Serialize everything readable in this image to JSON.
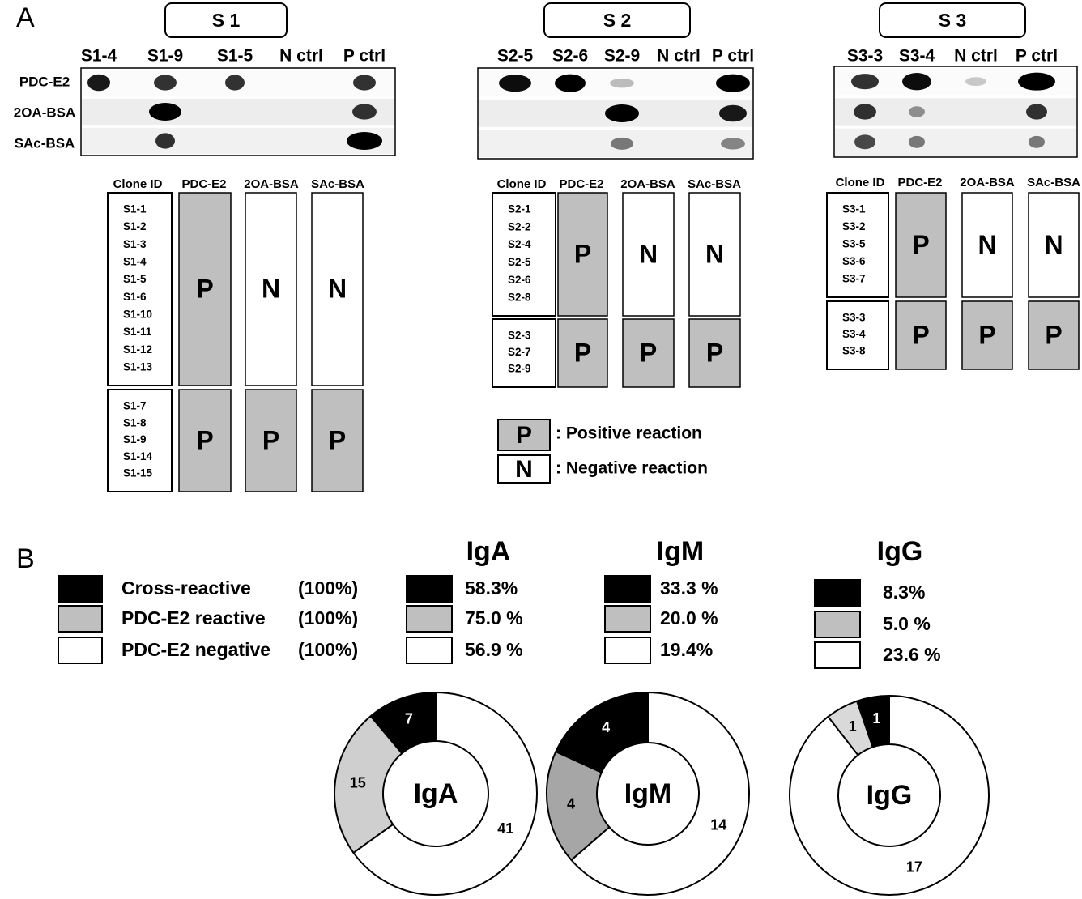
{
  "panel_a": {
    "label": "A",
    "sections": [
      {
        "title": "S 1",
        "lanes": [
          "S1-4",
          "S1-9",
          "S1-5",
          "N ctrl",
          "P ctrl"
        ],
        "rows": [
          "PDC-E2",
          "2OA-BSA",
          "SAc-BSA"
        ],
        "table": {
          "headers": [
            "Clone ID",
            "PDC-E2",
            "2OA-BSA",
            "SAc-BSA"
          ],
          "groups": [
            {
              "clones": [
                "S1-1",
                "S1-2",
                "S1-3",
                "S1-4",
                "S1-5",
                "S1-6",
                "S1-10",
                "S1-11",
                "S1-12",
                "S1-13"
              ],
              "results": [
                "P",
                "N",
                "N"
              ]
            },
            {
              "clones": [
                "S1-7",
                "S1-8",
                "S1-9",
                "S1-14",
                "S1-15"
              ],
              "results": [
                "P",
                "P",
                "P"
              ]
            }
          ]
        }
      },
      {
        "title": "S 2",
        "lanes": [
          "S2-5",
          "S2-6",
          "S2-9",
          "N ctrl",
          "P ctrl"
        ],
        "table": {
          "headers": [
            "Clone ID",
            "PDC-E2",
            "2OA-BSA",
            "SAc-BSA"
          ],
          "groups": [
            {
              "clones": [
                "S2-1",
                "S2-2",
                "S2-4",
                "S2-5",
                "S2-6",
                "S2-8"
              ],
              "results": [
                "P",
                "N",
                "N"
              ]
            },
            {
              "clones": [
                "S2-3",
                "S2-7",
                "S2-9"
              ],
              "results": [
                "P",
                "P",
                "P"
              ]
            }
          ]
        }
      },
      {
        "title": "S 3",
        "lanes": [
          "S3-3",
          "S3-4",
          "N ctrl",
          "P ctrl"
        ],
        "table": {
          "headers": [
            "Clone ID",
            "PDC-E2",
            "2OA-BSA",
            "SAc-BSA"
          ],
          "groups": [
            {
              "clones": [
                "S3-1",
                "S3-2",
                "S3-5",
                "S3-6",
                "S3-7"
              ],
              "results": [
                "P",
                "N",
                "N"
              ]
            },
            {
              "clones": [
                "S3-3",
                "S3-4",
                "S3-8"
              ],
              "results": [
                "P",
                "P",
                "P"
              ]
            }
          ]
        }
      }
    ],
    "legend": [
      {
        "symbol": "P",
        "text": ": Positive reaction"
      },
      {
        "symbol": "N",
        "text": ": Negative reaction"
      }
    ]
  },
  "panel_b": {
    "label": "B",
    "legend": [
      {
        "label": "Cross-reactive",
        "pct": "(100%)"
      },
      {
        "label": "PDC-E2 reactive",
        "pct": "(100%)"
      },
      {
        "label": "PDC-E2 negative",
        "pct": "(100%)"
      }
    ],
    "groups": [
      {
        "title": "IgA",
        "pcts": [
          "58.3%",
          "75.0 %",
          "56.9 %"
        ]
      },
      {
        "title": "IgM",
        "pcts": [
          "33.3 %",
          "20.0 %",
          "19.4%"
        ]
      },
      {
        "title": "IgG",
        "pcts": [
          "8.3%",
          "5.0 %",
          "23.6 %"
        ]
      }
    ]
  },
  "chart_data": [
    {
      "type": "donut",
      "title": "IgA",
      "values": [
        7,
        15,
        41
      ],
      "colors": [
        "#000000",
        "#cfcfcf",
        "#ffffff"
      ]
    },
    {
      "type": "donut",
      "title": "IgM",
      "values": [
        4,
        4,
        14
      ],
      "colors": [
        "#000000",
        "#a6a6a6",
        "#ffffff"
      ]
    },
    {
      "type": "donut",
      "title": "IgG",
      "values": [
        1,
        1,
        17
      ],
      "colors": [
        "#000000",
        "#d9d9d9",
        "#ffffff"
      ]
    }
  ]
}
